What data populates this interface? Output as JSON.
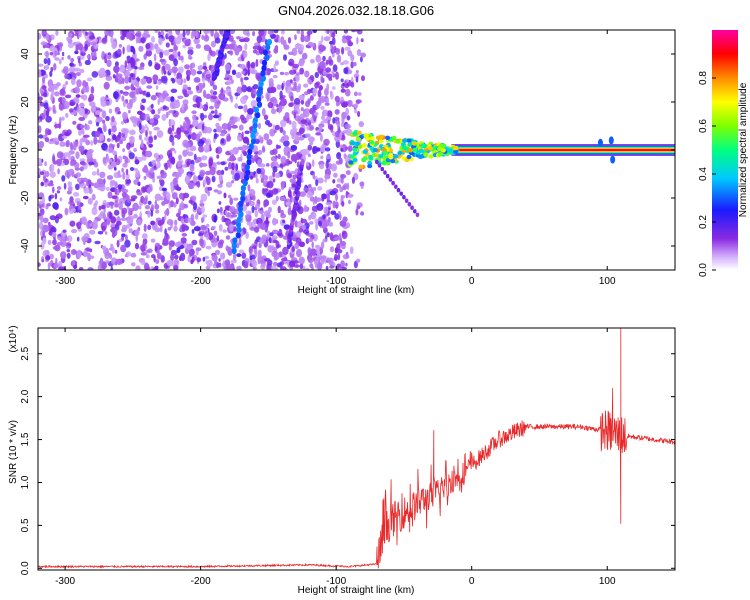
{
  "figure": {
    "title": "GN04.2026.032.18.18.G06"
  },
  "chart_data": [
    {
      "type": "heatmap",
      "title": "GN04.2026.032.18.18.G06",
      "xlabel": "Height of straight line (km)",
      "ylabel": "Frequency (Hz)",
      "xlim": [
        -320,
        150
      ],
      "ylim": [
        -50,
        50
      ],
      "xticks": [
        -300,
        -200,
        -100,
        0,
        100
      ],
      "yticks": [
        -40,
        -20,
        0,
        20,
        40
      ],
      "xtick_labels": [
        "-300",
        "-200",
        "-100",
        "0",
        "100"
      ],
      "ytick_labels": [
        "-40",
        "-20",
        "0",
        "20",
        "40"
      ],
      "colorbar": {
        "label": "Normalized spectral amplitude",
        "range": [
          0,
          1
        ],
        "ticks": [
          0.0,
          0.2,
          0.4,
          0.6,
          0.8
        ],
        "tick_labels": [
          "0.0",
          "0.2",
          "0.4",
          "0.6",
          "0.8"
        ],
        "colormap": "rainbow (white-violet-blue-cyan-green-yellow-red-magenta)"
      },
      "features": {
        "noise_region_x": [
          -320,
          -90
        ],
        "carrier_line": {
          "x_start": -90,
          "x_end": 150,
          "frequency": 0,
          "amplitude": 1.0
        },
        "streak_1": {
          "x": [
            -175,
            -150
          ],
          "frequency": [
            -42,
            45
          ],
          "amplitude": 0.3
        },
        "streak_2": {
          "x": [
            -190,
            -180
          ],
          "frequency": [
            30,
            50
          ],
          "amplitude": 0.2
        },
        "streak_3": {
          "x": [
            -135,
            -125
          ],
          "frequency": [
            -40,
            -5
          ],
          "amplitude": 0.15
        },
        "tail_branch": {
          "x": [
            -70,
            -40
          ],
          "frequency": [
            -5,
            -27
          ]
        }
      }
    },
    {
      "type": "line",
      "xlabel": "Height of straight line (km)",
      "ylabel": "SNR (10 * v/v)",
      "y_multiplier_label": "(x10⁴)",
      "xlim": [
        -320,
        150
      ],
      "ylim": [
        -0.02,
        2.8
      ],
      "xticks": [
        -300,
        -200,
        -100,
        0,
        100
      ],
      "yticks": [
        0.0,
        0.5,
        1.0,
        1.5,
        2.0,
        2.5
      ],
      "xtick_labels": [
        "-300",
        "-200",
        "-100",
        "0",
        "100"
      ],
      "ytick_labels": [
        "0.0",
        "0.5",
        "1.0",
        "1.5",
        "2.0",
        "2.5"
      ],
      "color": "#e8292a",
      "envelope": {
        "x": [
          -320,
          -200,
          -120,
          -90,
          -70,
          -65,
          -60,
          -40,
          -20,
          0,
          20,
          40,
          80,
          100,
          110,
          150
        ],
        "y": [
          0.02,
          0.02,
          0.04,
          0.02,
          0.05,
          0.4,
          0.55,
          0.75,
          0.95,
          1.2,
          1.5,
          1.65,
          1.65,
          1.6,
          1.55,
          1.47
        ]
      },
      "spikes": [
        {
          "x": -28,
          "y": 1.61
        },
        {
          "x": 104,
          "y": 2.1
        },
        {
          "x": 110,
          "y": 2.8
        },
        {
          "x": 110,
          "y": 0.52
        }
      ]
    }
  ]
}
